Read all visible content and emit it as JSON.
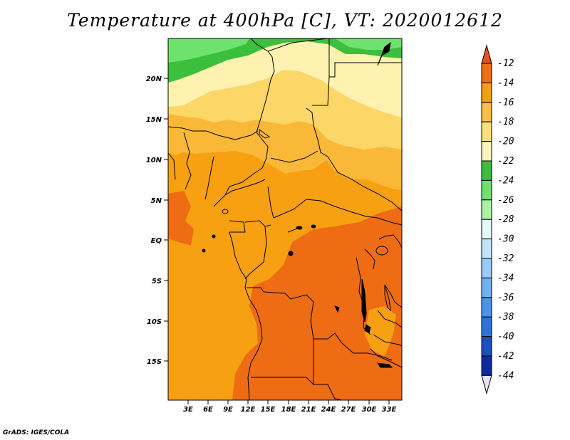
{
  "title": "Temperature at 400hPa [C], VT: 2020012612",
  "credit": "GrADS: IGES/COLA",
  "lat_labels": [
    "20N",
    "15N",
    "10N",
    "5N",
    "EQ",
    "5S",
    "10S",
    "15S"
  ],
  "lon_labels": [
    "3E",
    "6E",
    "9E",
    "12E",
    "15E",
    "18E",
    "21E",
    "24E",
    "27E",
    "30E",
    "33E"
  ],
  "colorbar": {
    "labels": [
      "-12",
      "-14",
      "-16",
      "-18",
      "-20",
      "-22",
      "-24",
      "-26",
      "-28",
      "-30",
      "-32",
      "-34",
      "-36",
      "-38",
      "-40",
      "-42",
      "-44"
    ],
    "colors": [
      "#e8501a",
      "#f07010",
      "#f59e16",
      "#fbbd48",
      "#fde07a",
      "#fff5ba",
      "#3cbf3c",
      "#6ee26e",
      "#a8f4a2",
      "#e4fbf8",
      "#c2e4fb",
      "#98ccf8",
      "#70b2f5",
      "#4896ec",
      "#2a74dc",
      "#1850c0",
      "#0e2aa2",
      "#061060",
      "#e2e4f8"
    ]
  }
}
